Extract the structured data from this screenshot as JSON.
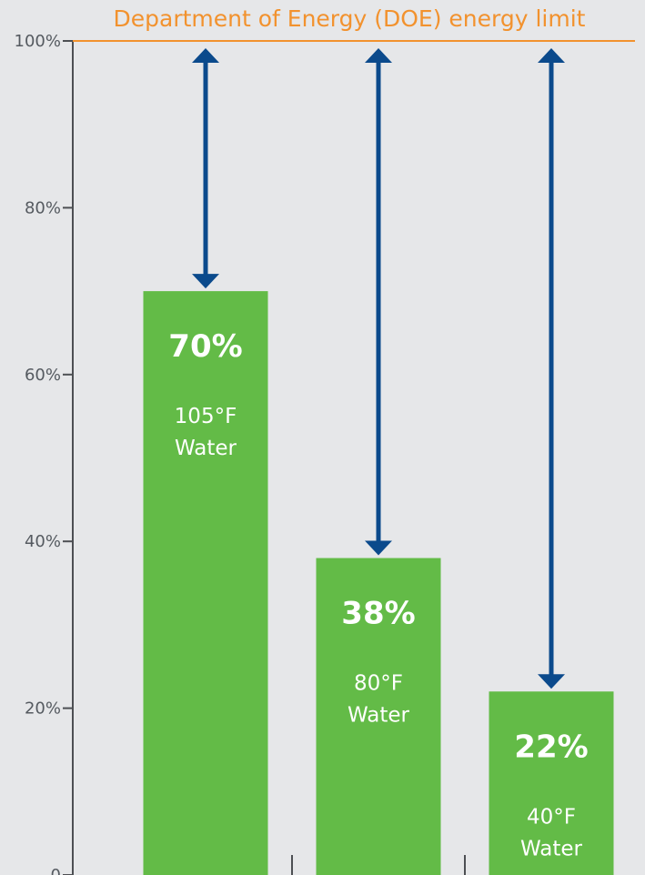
{
  "chart_data": {
    "type": "bar",
    "title": "",
    "xlabel": "",
    "ylabel": "",
    "ylim": [
      0,
      100
    ],
    "y_ticks": [
      {
        "value": 0,
        "label": "0"
      },
      {
        "value": 20,
        "label": "20%"
      },
      {
        "value": 40,
        "label": "40%"
      },
      {
        "value": 60,
        "label": "60%"
      },
      {
        "value": 80,
        "label": "80%"
      },
      {
        "value": 100,
        "label": "100%"
      }
    ],
    "reference_line": {
      "value": 100,
      "label": "Department of Energy (DOE) energy limit"
    },
    "categories": [
      "105°F Water",
      "80°F Water",
      "40°F Water"
    ],
    "bars": [
      {
        "value": 70,
        "value_label": "70%",
        "desc_lines": [
          "105°F",
          "Water"
        ]
      },
      {
        "value": 38,
        "value_label": "38%",
        "desc_lines": [
          "80°F",
          "Water"
        ]
      },
      {
        "value": 22,
        "value_label": "22%",
        "desc_lines": [
          "40°F",
          "Water"
        ]
      }
    ],
    "grid": false,
    "colors": {
      "background": "#e6e7e9",
      "bar": "#63bb47",
      "arrow": "#0b4a8c",
      "limit_line": "#f2922e",
      "axis": "#4d4f53",
      "bar_text": "#ffffff"
    }
  }
}
